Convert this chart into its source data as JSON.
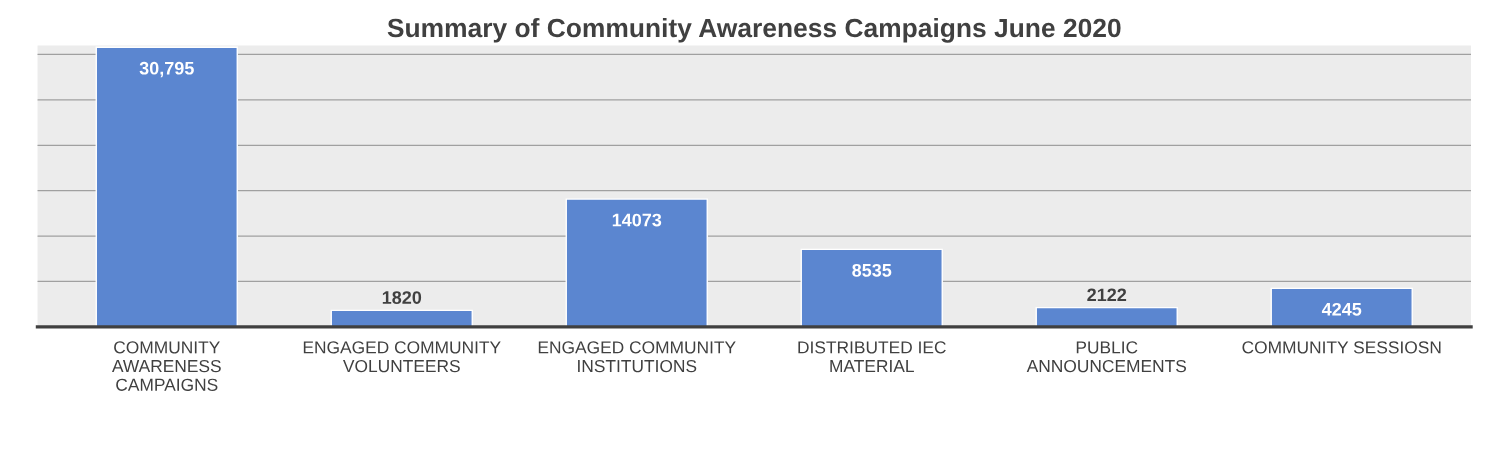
{
  "chart_data": {
    "type": "bar",
    "title": "Summary of Community Awareness Campaigns June 2020",
    "categories": [
      "COMMUNITY\nAWARENESS\nCAMPAIGNS",
      "ENGAGED COMMUNITY\nVOLUNTEERS",
      "ENGAGED COMMUNITY\nINSTITUTIONS",
      "DISTRIBUTED IEC\nMATERIAL",
      "PUBLIC\nANNOUNCEMENTS",
      "COMMUNITY SESSIOSN"
    ],
    "values": [
      30795,
      1820,
      14073,
      8535,
      2122,
      4245
    ],
    "value_labels": [
      "30,795",
      "1820",
      "14073",
      "8535",
      "2122",
      "4245"
    ],
    "color": "#5b86d0",
    "ylim": [
      0,
      31000
    ],
    "yticks": [
      {
        "value": 0,
        "label": null
      },
      {
        "value": 5000,
        "label": null
      },
      {
        "value": 10000,
        "label": null
      },
      {
        "value": 15000,
        "label": null
      },
      {
        "value": 20000,
        "label": null
      },
      {
        "value": 25000,
        "label": null
      },
      {
        "value": 30000,
        "label": null
      }
    ],
    "grid": "y",
    "tick_labels": "x"
  }
}
